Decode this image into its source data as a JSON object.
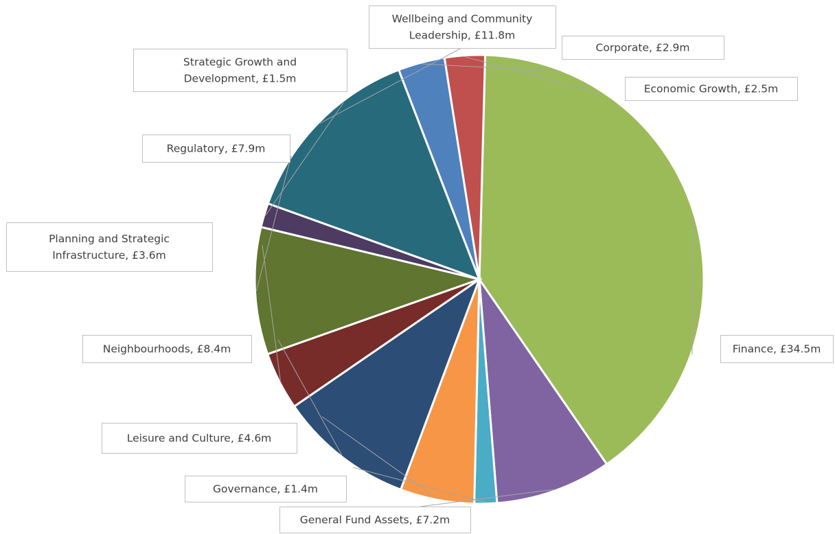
{
  "chart_data": {
    "type": "pie",
    "title": "",
    "slices": [
      {
        "label": "Finance, £34.5m",
        "name": "Finance",
        "value": 34.5,
        "color": "#9bbb59"
      },
      {
        "label": "General Fund Assets, £7.2m",
        "name": "General Fund Assets",
        "value": 7.2,
        "color": "#8064a2"
      },
      {
        "label": "Governance, £1.4m",
        "name": "Governance",
        "value": 1.4,
        "color": "#4bacc6"
      },
      {
        "label": "Leisure and Culture, £4.6m",
        "name": "Leisure and Culture",
        "value": 4.6,
        "color": "#f79646"
      },
      {
        "label": "Neighbourhoods, £8.4m",
        "name": "Neighbourhoods",
        "value": 8.4,
        "color": "#2c4d75"
      },
      {
        "label": "Planning and Strategic Infrastructure, £3.6m",
        "name": "Planning and Strategic Infrastructure",
        "value": 3.6,
        "color": "#772c2a"
      },
      {
        "label": "Regulatory, £7.9m",
        "name": "Regulatory",
        "value": 7.9,
        "color": "#5f7530"
      },
      {
        "label": "Strategic Growth and Development, £1.5m",
        "name": "Strategic Growth and Development",
        "value": 1.5,
        "color": "#4d3b62"
      },
      {
        "label": "Wellbeing and Community Leadership, £11.8m",
        "name": "Wellbeing and Community Leadership",
        "value": 11.8,
        "color": "#276a7c"
      },
      {
        "label": "Corporate, £2.9m",
        "name": "Corporate",
        "value": 2.9,
        "color": "#4f81bd"
      },
      {
        "label": "Economic Growth, £2.5m",
        "name": "Economic Growth",
        "value": 2.5,
        "color": "#c0504d"
      }
    ]
  }
}
